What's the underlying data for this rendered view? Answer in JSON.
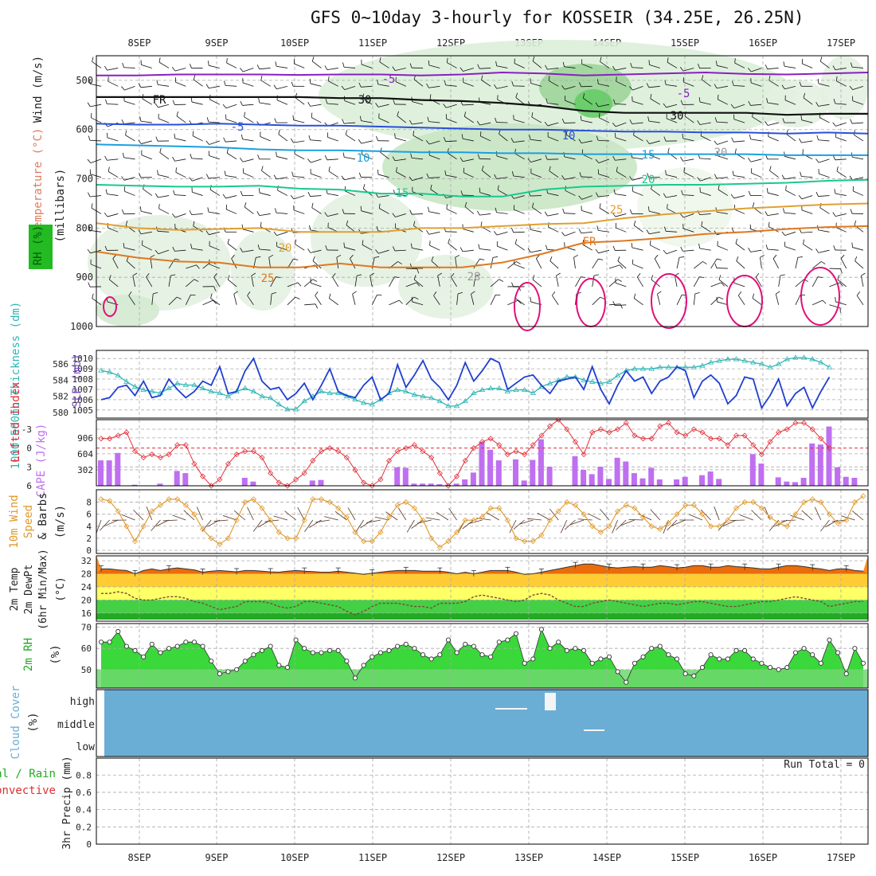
{
  "title": "GFS 0~10day 3-hourly for KOSSEIR (34.25E, 26.25N)",
  "dates": [
    "8SEP",
    "9SEP",
    "10SEP",
    "11SEP",
    "12SEP",
    "13SEP",
    "14SEP",
    "15SEP",
    "16SEP",
    "17SEP"
  ],
  "colors": {
    "grid": "#aaaaaa",
    "slp": "#1f3fd0",
    "thick": "#2fb5b5",
    "li": "#e0303a",
    "cape": "#bf6ff0",
    "wind": "#e0982a",
    "barb": "#553322",
    "rh": "#3ad83a",
    "rhlow": "#6fd86f",
    "cloud": "#6aaed6",
    "dew": "#7a4a3a"
  },
  "chart_data": [
    {
      "panel": "upper-air",
      "type": "contour",
      "ylabel_lines": [
        {
          "text": "Wind (m/s)",
          "color": "#222222"
        },
        {
          "text": "Temperature (°C)",
          "color": "#e07a5f"
        },
        {
          "text": "RH (%)",
          "color": "#22aa22"
        },
        {
          "text": "(millibars)",
          "color": "#222222"
        }
      ],
      "yticks": [
        500,
        600,
        700,
        800,
        900,
        1000
      ],
      "ylim": [
        450,
        1000
      ],
      "isotherms": [
        {
          "label": "-5",
          "color": "#8a1fbf",
          "levels": [
            490,
            490,
            488,
            488,
            488,
            489,
            488,
            488,
            490,
            488,
            484,
            486,
            490,
            488,
            486,
            484,
            487,
            488,
            486,
            484
          ]
        },
        {
          "label": "FR",
          "color": "#111111",
          "levels": [
            534,
            534,
            534,
            534,
            534,
            534,
            536,
            536,
            540,
            542,
            546,
            552,
            562,
            566,
            566,
            566,
            566,
            570,
            568,
            568
          ]
        },
        {
          "label": "-5",
          "color": "#2b4fd8",
          "levels": [
            588,
            590,
            590,
            588,
            590,
            592,
            592,
            594,
            596,
            598,
            600,
            600,
            602,
            604,
            604,
            606,
            606,
            608,
            606,
            608
          ]
        },
        {
          "label": "10",
          "color": "#1aa0e0",
          "levels": [
            630,
            632,
            634,
            636,
            640,
            642,
            642,
            644,
            646,
            646,
            648,
            648,
            650,
            650,
            650,
            650,
            650,
            652,
            652,
            652
          ]
        },
        {
          "label": "15",
          "color": "#1ac890",
          "levels": [
            712,
            714,
            716,
            716,
            714,
            720,
            722,
            730,
            730,
            736,
            736,
            722,
            716,
            714,
            712,
            712,
            710,
            708,
            704,
            702
          ]
        },
        {
          "label": "20",
          "color": "#e0a030",
          "levels": [
            790,
            800,
            804,
            802,
            800,
            808,
            808,
            808,
            800,
            800,
            796,
            792,
            790,
            780,
            772,
            766,
            760,
            756,
            752,
            750
          ]
        },
        {
          "label": "25",
          "color": "#e07820",
          "levels": [
            848,
            860,
            868,
            870,
            880,
            880,
            872,
            880,
            880,
            880,
            870,
            852,
            830,
            826,
            820,
            812,
            808,
            802,
            798,
            796
          ]
        }
      ],
      "contour_labels": [
        "-5",
        "FR",
        "-5",
        "10",
        "15",
        "20",
        "25",
        "-5",
        "10",
        "15",
        "20",
        "25",
        "FR",
        "30",
        "30",
        "20",
        "28"
      ]
    },
    {
      "panel": "slp-thickness",
      "type": "line",
      "ylabel_left": "1000-500mb Thickness (dm)",
      "ylabel_right": "SLP (mb)",
      "yticks_left": [
        586,
        584,
        582,
        580
      ],
      "yticks_right": [
        1010,
        1009,
        1008,
        1007,
        1006,
        1005
      ],
      "ylim_slp": [
        1004.6,
        1010.4
      ],
      "series": [
        {
          "name": "SLP (mb)",
          "values": [
            1006.0,
            1006.2,
            1007.2,
            1007.4,
            1006.4,
            1007.8,
            1006.2,
            1006.4,
            1008.0,
            1007.0,
            1006.2,
            1006.8,
            1007.8,
            1007.4,
            1009.2,
            1006.6,
            1006.8,
            1008.8,
            1010.0,
            1007.8,
            1007.0,
            1007.2,
            1006.0,
            1006.6,
            1007.6,
            1006.0,
            1007.4,
            1009.0,
            1006.8,
            1006.4,
            1006.2,
            1007.4,
            1008.2,
            1006.0,
            1006.6,
            1009.4,
            1007.2,
            1008.4,
            1009.8,
            1008.0,
            1007.2,
            1006.0,
            1007.4,
            1009.6,
            1007.8,
            1008.8,
            1010.0,
            1009.6,
            1007.0,
            1007.6,
            1008.2,
            1008.4,
            1007.4,
            1006.6,
            1007.8,
            1008.0,
            1008.2,
            1007.0,
            1009.2,
            1007.0,
            1005.6,
            1007.4,
            1008.8,
            1007.8,
            1008.2,
            1006.6,
            1007.8,
            1008.2,
            1009.2,
            1008.8,
            1006.2,
            1007.8,
            1008.4,
            1007.6,
            1005.6,
            1006.4,
            1008.2,
            1008.0,
            1005.2,
            1006.4,
            1008.0,
            1005.4,
            1006.6,
            1007.2,
            1005.2,
            1006.8,
            1008.2
          ]
        },
        {
          "name": "Thickness (dm)",
          "values": [
            585.2,
            585.0,
            584.6,
            583.8,
            583.2,
            582.8,
            582.6,
            582.4,
            583.0,
            583.6,
            583.4,
            583.4,
            583.0,
            582.6,
            582.4,
            582.0,
            582.6,
            583.0,
            582.6,
            582.0,
            581.8,
            581.0,
            580.4,
            580.4,
            581.4,
            582.0,
            582.6,
            582.4,
            582.4,
            582.0,
            581.6,
            581.2,
            581.0,
            581.6,
            582.4,
            582.8,
            582.6,
            582.2,
            582.0,
            581.8,
            581.4,
            580.8,
            580.8,
            581.4,
            582.4,
            582.8,
            583.0,
            583.0,
            582.6,
            582.8,
            582.8,
            582.4,
            583.2,
            583.6,
            584.0,
            584.4,
            584.4,
            584.0,
            583.8,
            583.6,
            583.8,
            584.6,
            585.2,
            585.4,
            585.4,
            585.4,
            585.6,
            585.6,
            585.6,
            585.6,
            585.6,
            585.8,
            586.2,
            586.4,
            586.6,
            586.6,
            586.4,
            586.2,
            586.0,
            585.6,
            586.0,
            586.6,
            586.8,
            586.8,
            586.6,
            586.2,
            585.6
          ]
        }
      ]
    },
    {
      "panel": "lifted-index-cape",
      "type": "bar+line",
      "ylabel_left": "Lifted Index",
      "ylabel_right": "CAPE (J/kg)",
      "yticks_left": [
        -3,
        0,
        3,
        6
      ],
      "yticks_right": [
        906,
        604,
        302
      ],
      "series": [
        {
          "name": "Lifted Index",
          "values": [
            -1.5,
            -1.5,
            -2.0,
            -2.5,
            0.5,
            1.5,
            1.0,
            1.5,
            1.0,
            -0.5,
            -0.5,
            2.5,
            4.5,
            6.0,
            5.0,
            2.5,
            1.0,
            0.5,
            0.5,
            1.5,
            4.0,
            5.5,
            6.0,
            5.0,
            4.0,
            2.0,
            0.5,
            0.0,
            0.5,
            1.5,
            3.5,
            5.5,
            6.0,
            5.0,
            2.0,
            0.5,
            0.0,
            -0.5,
            0.5,
            1.5,
            4.0,
            6.0,
            4.5,
            2.0,
            0.0,
            -1.0,
            -1.5,
            -0.5,
            1.0,
            0.5,
            1.0,
            -0.5,
            -2.0,
            -3.5,
            -4.5,
            -3.0,
            -1.0,
            1.0,
            -2.5,
            -3.0,
            -2.5,
            -3.0,
            -4.0,
            -2.0,
            -1.5,
            -1.5,
            -3.5,
            -4.0,
            -2.5,
            -2.0,
            -3.0,
            -2.5,
            -1.5,
            -1.5,
            -0.5,
            -2.0,
            -2.0,
            -0.5,
            1.0,
            -1.0,
            -2.5,
            -3.0,
            -4.0,
            -4.0,
            -3.0,
            -1.5,
            0.0
          ]
        },
        {
          "name": "CAPE (J/kg)",
          "values": [
            480,
            480,
            620,
            0,
            20,
            0,
            0,
            40,
            0,
            280,
            240,
            0,
            0,
            0,
            0,
            0,
            0,
            150,
            80,
            0,
            0,
            0,
            0,
            0,
            0,
            100,
            110,
            0,
            0,
            0,
            0,
            0,
            0,
            0,
            0,
            350,
            340,
            40,
            40,
            40,
            30,
            20,
            40,
            120,
            250,
            830,
            680,
            480,
            0,
            500,
            100,
            490,
            880,
            360,
            0,
            0,
            560,
            300,
            220,
            360,
            130,
            530,
            460,
            240,
            140,
            340,
            120,
            0,
            120,
            170,
            0,
            200,
            270,
            130,
            0,
            0,
            0,
            600,
            420,
            0,
            160,
            80,
            70,
            150,
            800,
            780,
            1120,
            350,
            170,
            150
          ]
        }
      ]
    },
    {
      "panel": "10m-wind",
      "type": "line",
      "ylabel": "10m Wind Speed & Barbs (m/s)",
      "yticks": [
        8,
        6,
        4,
        2,
        0
      ],
      "series": [
        {
          "name": "Wind Speed (m/s)",
          "values": [
            8.5,
            8.2,
            6.5,
            4.0,
            1.5,
            4.0,
            6.5,
            7.5,
            8.5,
            8.5,
            7.5,
            6.0,
            3.5,
            2.0,
            1.0,
            2.0,
            5.0,
            8.0,
            8.5,
            7.0,
            5.0,
            3.0,
            2.0,
            2.0,
            5.0,
            8.5,
            8.5,
            8.0,
            7.0,
            5.5,
            3.0,
            1.5,
            1.5,
            3.0,
            5.5,
            7.5,
            8.0,
            7.0,
            5.0,
            2.0,
            0.5,
            1.5,
            3.0,
            5.0,
            5.0,
            5.5,
            7.0,
            7.0,
            5.0,
            2.0,
            1.5,
            1.5,
            2.5,
            5.0,
            6.5,
            8.0,
            7.5,
            6.0,
            4.0,
            3.0,
            4.0,
            6.5,
            7.5,
            7.0,
            5.5,
            4.0,
            3.5,
            4.5,
            6.0,
            7.5,
            7.5,
            6.0,
            4.0,
            4.0,
            5.0,
            7.0,
            8.0,
            8.0,
            7.0,
            5.5,
            4.5,
            4.0,
            6.0,
            8.0,
            8.5,
            8.0,
            6.0,
            4.5,
            5.0,
            8.0,
            9.0
          ]
        }
      ]
    },
    {
      "panel": "2m-temp",
      "type": "area",
      "ylabel": "2m Temp 2m DewPt (6hr Min/Max) (°C)",
      "yticks": [
        32,
        28,
        24,
        20,
        16
      ],
      "series": [
        {
          "name": "2m Temp (°C)",
          "values": [
            29.5,
            29.5,
            29.2,
            29.0,
            28.0,
            29.0,
            29.5,
            29.0,
            29.5,
            29.8,
            29.5,
            29.2,
            28.5,
            28.8,
            29.0,
            28.8,
            28.6,
            29.0,
            29.0,
            28.8,
            28.6,
            28.5,
            28.8,
            29.0,
            28.8,
            28.7,
            28.5,
            28.5,
            28.8,
            28.5,
            28.2,
            27.8,
            28.2,
            28.5,
            28.8,
            29.0,
            29.0,
            29.0,
            28.8,
            28.8,
            28.8,
            28.5,
            28.0,
            28.5,
            28.0,
            28.5,
            29.0,
            29.0,
            29.0,
            28.5,
            27.8,
            28.0,
            28.5,
            29.0,
            29.5,
            30.0,
            30.5,
            31.0,
            31.0,
            30.5,
            30.0,
            29.8,
            30.0,
            30.2,
            30.0,
            30.0,
            30.5,
            30.2,
            29.8,
            30.0,
            30.5,
            30.5,
            30.0,
            30.0,
            30.5,
            30.2,
            30.0,
            29.8,
            29.5,
            29.5,
            30.0,
            30.5,
            30.5,
            30.2,
            29.8,
            29.5,
            29.0,
            29.5,
            29.5,
            29.0,
            28.8
          ]
        },
        {
          "name": "2m DewPt (°C)",
          "values": [
            22.0,
            22.0,
            22.5,
            22.0,
            20.5,
            20.0,
            20.0,
            20.5,
            21.0,
            21.0,
            20.5,
            19.5,
            19.0,
            18.0,
            17.0,
            17.5,
            18.0,
            19.5,
            19.5,
            19.5,
            19.0,
            18.0,
            17.5,
            18.0,
            19.5,
            19.5,
            19.0,
            18.5,
            18.0,
            16.5,
            15.5,
            16.5,
            18.0,
            19.0,
            19.0,
            19.0,
            18.5,
            18.0,
            18.0,
            17.5,
            19.0,
            19.0,
            19.0,
            19.5,
            21.0,
            21.5,
            21.0,
            20.5,
            20.0,
            19.5,
            20.0,
            21.5,
            22.0,
            21.5,
            20.0,
            19.0,
            18.0,
            18.0,
            19.0,
            19.5,
            20.0,
            19.5,
            19.0,
            18.5,
            18.0,
            18.5,
            19.0,
            19.0,
            18.5,
            19.0,
            19.5,
            19.5,
            19.0,
            18.5,
            18.0,
            18.0,
            18.5,
            19.0,
            19.5,
            19.5,
            20.0,
            20.5,
            21.0,
            20.5,
            20.0,
            19.5,
            18.0,
            18.5,
            19.0,
            19.5,
            19.5
          ]
        }
      ]
    },
    {
      "panel": "2m-rh",
      "type": "area",
      "ylabel": "2m RH (%)",
      "yticks": [
        70,
        60,
        50
      ],
      "values": [
        63,
        63,
        68,
        61,
        59,
        56,
        62,
        58,
        60,
        61,
        63,
        63,
        61,
        54,
        48,
        49,
        50,
        54,
        57,
        59,
        61,
        52,
        51,
        64,
        60,
        58,
        58,
        59,
        59,
        54,
        46,
        52,
        56,
        58,
        59,
        61,
        62,
        60,
        57,
        55,
        57,
        64,
        58,
        62,
        61,
        57,
        56,
        63,
        64,
        67,
        53,
        55,
        69,
        60,
        63,
        59,
        60,
        59,
        53,
        55,
        56,
        49,
        44,
        53,
        56,
        60,
        61,
        57,
        55,
        48,
        47,
        51,
        57,
        55,
        55,
        59,
        59,
        55,
        53,
        51,
        50,
        51,
        58,
        60,
        57,
        53,
        64,
        58,
        48,
        60,
        53
      ]
    },
    {
      "panel": "cloud-cover",
      "type": "heatmap",
      "ylabel": "Cloud Cover (%)",
      "yticks": [
        "high",
        "middle",
        "low"
      ],
      "note": "near-uniform background with a few high/middle cloud patches around 12–14 SEP"
    },
    {
      "panel": "precip",
      "type": "bar",
      "ylabel_lines": [
        {
          "text": "Total / Rain",
          "color": "#22aa22"
        },
        {
          "text": "Convective",
          "color": "#e03030"
        },
        {
          "text": "3hr Precip (mm)",
          "color": "#222222"
        }
      ],
      "yticks": [
        0.8,
        0.6,
        0.4,
        0.2,
        0
      ],
      "ylim": [
        0,
        1.0
      ],
      "values": [],
      "run_total": "Run Total = 0"
    }
  ]
}
